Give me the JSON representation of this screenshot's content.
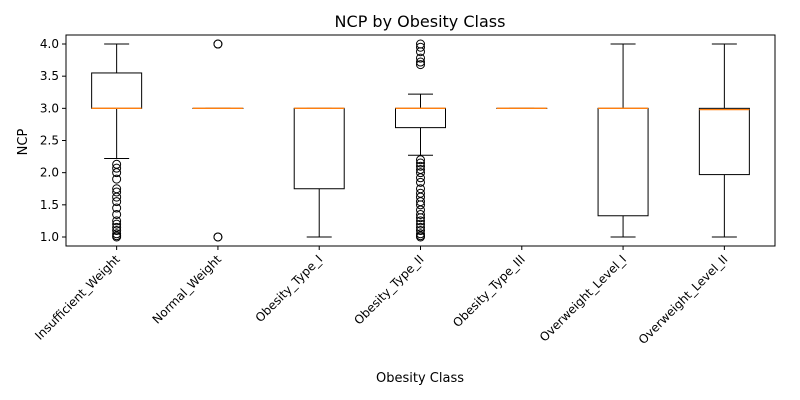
{
  "chart_data": {
    "type": "box",
    "title": "NCP by Obesity Class",
    "xlabel": "Obesity Class",
    "ylabel": "NCP",
    "ylim": [
      0.86,
      4.14
    ],
    "yticks": [
      1.0,
      1.5,
      2.0,
      2.5,
      3.0,
      3.5,
      4.0
    ],
    "ytick_labels": [
      "1.0",
      "1.5",
      "2.0",
      "2.5",
      "3.0",
      "3.5",
      "4.0"
    ],
    "categories": [
      "Insufficient_Weight",
      "Normal_Weight",
      "Obesity_Type_I",
      "Obesity_Type_II",
      "Obesity_Type_III",
      "Overweight_Level_I",
      "Overweight_Level_II"
    ],
    "tick_label_rotation": 45,
    "grid": false,
    "box_color": "#000000",
    "median_color": "#ff7f0e",
    "boxes": [
      {
        "whisker_low": 2.22,
        "q1": 3.0,
        "median": 3.0,
        "q3": 3.55,
        "whisker_high": 4.0,
        "outliers": [
          1.0,
          1.02,
          1.05,
          1.1,
          1.15,
          1.2,
          1.25,
          1.35,
          1.45,
          1.55,
          1.62,
          1.7,
          1.75,
          1.9,
          2.0,
          2.07,
          2.13
        ]
      },
      {
        "whisker_low": 3.0,
        "q1": 3.0,
        "median": 3.0,
        "q3": 3.0,
        "whisker_high": 3.0,
        "outliers": [
          1.0,
          1.0,
          4.0,
          4.0
        ]
      },
      {
        "whisker_low": 1.0,
        "q1": 1.75,
        "median": 3.0,
        "q3": 3.0,
        "whisker_high": 3.0,
        "outliers": []
      },
      {
        "whisker_low": 2.27,
        "q1": 2.7,
        "median": 3.0,
        "q3": 3.0,
        "whisker_high": 3.22,
        "outliers": [
          1.0,
          1.02,
          1.05,
          1.1,
          1.15,
          1.2,
          1.25,
          1.3,
          1.35,
          1.42,
          1.5,
          1.55,
          1.62,
          1.68,
          1.75,
          1.85,
          1.92,
          2.0,
          2.05,
          2.1,
          2.15,
          2.2,
          3.68,
          3.72,
          3.78,
          3.88,
          3.95,
          4.0
        ]
      },
      {
        "whisker_low": 3.0,
        "q1": 3.0,
        "median": 3.0,
        "q3": 3.0,
        "whisker_high": 3.0,
        "outliers": []
      },
      {
        "whisker_low": 1.0,
        "q1": 1.33,
        "median": 3.0,
        "q3": 3.0,
        "whisker_high": 4.0,
        "outliers": []
      },
      {
        "whisker_low": 1.0,
        "q1": 1.97,
        "median": 2.98,
        "q3": 3.0,
        "whisker_high": 4.0,
        "outliers": []
      }
    ]
  }
}
